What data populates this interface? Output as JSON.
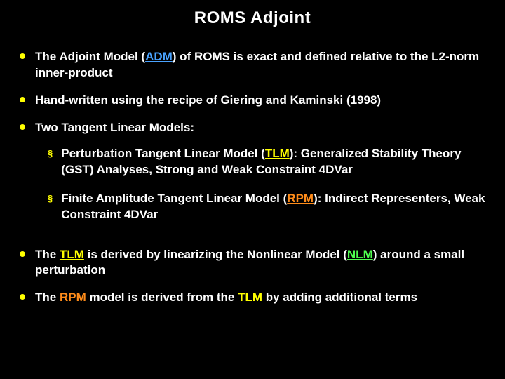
{
  "title": "ROMS Adjoint",
  "colors": {
    "background": "#000000",
    "text": "#ffffff",
    "bullet": "#ffff00",
    "adm": "#4aa3ff",
    "tlm": "#ffff00",
    "rpm": "#ff8c1a",
    "nlm": "#4fff4f"
  },
  "bullets": {
    "b0_pre": "The Adjoint Model (",
    "b0_adm": "ADM",
    "b0_post": ") of ROMS is exact and defined relative to the L2-norm inner-product",
    "b1": "Hand-written using the recipe of Giering and Kaminski (1998)",
    "b2": "Two Tangent Linear Models:",
    "b2_sub0_pre": "Perturbation Tangent Linear Model (",
    "b2_sub0_tlm": "TLM",
    "b2_sub0_post": "): Generalized Stability Theory (GST) Analyses, Strong and Weak Constraint 4DVar",
    "b2_sub1_pre": "Finite Amplitude Tangent Linear  Model (",
    "b2_sub1_rpm": "RPM",
    "b2_sub1_post": "): Indirect Representers, Weak Constraint 4DVar",
    "b3_pre": "The ",
    "b3_tlm": "TLM",
    "b3_mid": " is derived by linearizing the Nonlinear Model (",
    "b3_nlm": "NLM",
    "b3_post": ") around a small perturbation",
    "b4_pre": "The ",
    "b4_rpm": "RPM",
    "b4_mid": " model is derived from the ",
    "b4_tlm": "TLM",
    "b4_post": " by adding additional terms"
  }
}
